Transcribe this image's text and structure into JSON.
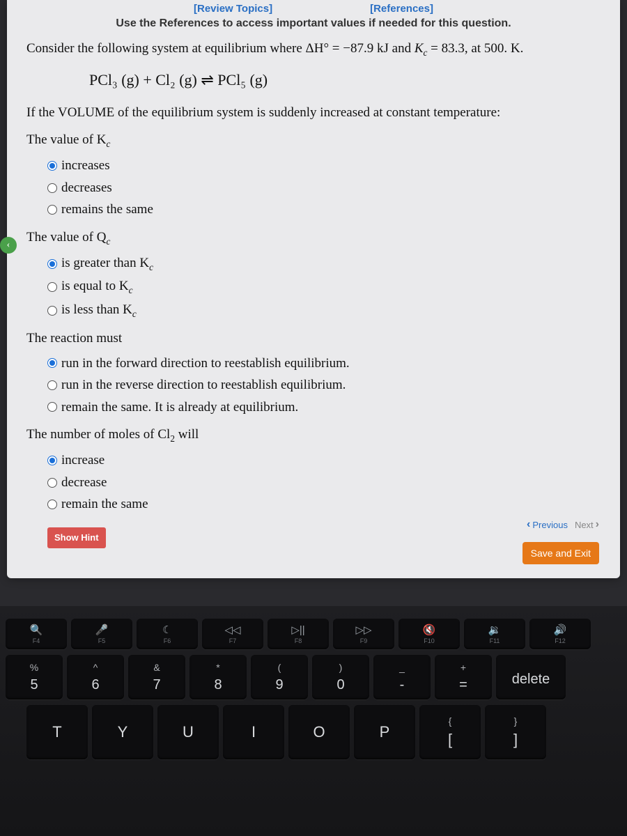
{
  "colors": {
    "link": "#2a6fc4",
    "screen_bg": "#eaeaec",
    "body_bg": "#2a2a2e",
    "hint_btn": "#d9534f",
    "save_btn": "#e67817",
    "radio_selected": "#1a6fd8",
    "side_arrow": "#4aa04a",
    "key_bg": "#0d0d0f",
    "key_text": "#c5c5c8"
  },
  "top_links": {
    "review": "[Review Topics]",
    "references": "[References]"
  },
  "instructions": "Use the References to access important values if needed for this question.",
  "intro_pre": "Consider the following system at equilibrium where ",
  "intro_dh": "ΔH° = −87.9 kJ",
  "intro_and": " and ",
  "intro_kc": "K",
  "intro_kc_sub": "c",
  "intro_kc_val": " = 83.3, at 500. K.",
  "equation": "PCl₃ (g) + Cl₂ (g) ⇌ PCl₅ (g)",
  "volume_prompt_pre": "If the VOLUME of the equilibrium system is suddenly increased at constant temperature:",
  "q1": {
    "prompt": "The value of K",
    "prompt_sub": "c",
    "options": [
      "increases",
      "decreases",
      "remains the same"
    ],
    "selected": 0
  },
  "q2": {
    "prompt": "The value of Q",
    "prompt_sub": "c",
    "options": [
      "is greater than K",
      "is equal to K",
      "is less than K"
    ],
    "option_sub": "c",
    "selected": 0
  },
  "q3": {
    "prompt": "The reaction must",
    "options": [
      "run in the forward direction to reestablish equilibrium.",
      "run in the reverse direction to reestablish equilibrium.",
      "remain the same. It is already at equilibrium."
    ],
    "selected": 0
  },
  "q4": {
    "prompt_pre": "The number of moles of Cl",
    "prompt_sub": "2",
    "prompt_post": " will",
    "options": [
      "increase",
      "decrease",
      "remain the same"
    ],
    "selected": 0
  },
  "buttons": {
    "show_hint": "Show Hint",
    "previous": "Previous",
    "next": "Next",
    "save_exit": "Save and Exit"
  },
  "keyboard": {
    "fn_row": [
      {
        "icon": "🔍",
        "label": "F4",
        "name": "f4"
      },
      {
        "icon": "🎤",
        "label": "F5",
        "name": "f5"
      },
      {
        "icon": "☾",
        "label": "F6",
        "name": "f6"
      },
      {
        "icon": "◁◁",
        "label": "F7",
        "name": "f7"
      },
      {
        "icon": "▷||",
        "label": "F8",
        "name": "f8"
      },
      {
        "icon": "▷▷",
        "label": "F9",
        "name": "f9"
      },
      {
        "icon": "🔇",
        "label": "F10",
        "name": "f10"
      },
      {
        "icon": "🔉",
        "label": "F11",
        "name": "f11"
      },
      {
        "icon": "🔊",
        "label": "F12",
        "name": "f12"
      }
    ],
    "num_row": [
      {
        "upper": "%",
        "main": "5"
      },
      {
        "upper": "^",
        "main": "6"
      },
      {
        "upper": "&",
        "main": "7"
      },
      {
        "upper": "*",
        "main": "8"
      },
      {
        "upper": "(",
        "main": "9"
      },
      {
        "upper": ")",
        "main": "0"
      },
      {
        "upper": "_",
        "main": "-"
      },
      {
        "upper": "+",
        "main": "="
      },
      {
        "upper": "",
        "main": "delete"
      }
    ],
    "letter_row": [
      {
        "main": "T"
      },
      {
        "main": "Y"
      },
      {
        "main": "U"
      },
      {
        "main": "I"
      },
      {
        "main": "O"
      },
      {
        "main": "P"
      },
      {
        "upper": "{",
        "main": "["
      },
      {
        "upper": "}",
        "main": "]"
      }
    ]
  }
}
